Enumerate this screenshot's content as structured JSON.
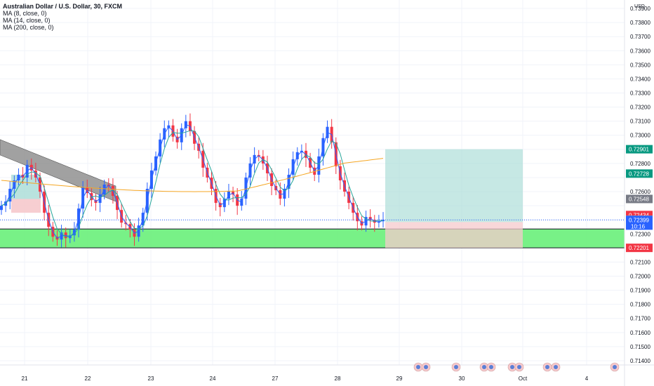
{
  "legend": {
    "title": "Australian Dollar / U.S. Dollar, 30, FXCM",
    "ma1": "MA (8, close, 0)",
    "ma2": "MA (14, close, 0)",
    "ma3": "MA (200, close, 0)"
  },
  "price_axis": {
    "currency": "USD",
    "ticks": [
      "0.73900",
      "0.73800",
      "0.73700",
      "0.73600",
      "0.73500",
      "0.73400",
      "0.73300",
      "0.73200",
      "0.73100",
      "0.73000",
      "0.72800",
      "0.72600",
      "0.72300",
      "0.72100",
      "0.72000",
      "0.71900",
      "0.71800",
      "0.71700",
      "0.71600",
      "0.71500",
      "0.71400"
    ],
    "top_partial_tick": "0.73900",
    "badges": [
      {
        "label": "0.72901",
        "value": 0.72901,
        "color": "#089981"
      },
      {
        "label": "0.72728",
        "value": 0.72728,
        "color": "#089981"
      },
      {
        "label": "0.72548",
        "value": 0.72548,
        "color": "#787b86"
      },
      {
        "label": "0.72434",
        "value": 0.72434,
        "color": "#f23645"
      },
      {
        "label": "0.72401",
        "value": 0.72401,
        "color": "#9e9e9e"
      },
      {
        "label": "0.72399",
        "value": 0.72399,
        "color": "#2962ff",
        "sub": "10:16"
      },
      {
        "label": "0.72201",
        "value": 0.72201,
        "color": "#f23645"
      }
    ]
  },
  "time_axis": {
    "labels": [
      "21",
      "22",
      "23",
      "24",
      "27",
      "28",
      "29",
      "30",
      "Oct",
      "4"
    ]
  },
  "colors": {
    "up": "#2962ff",
    "down": "#f23645",
    "ma8": "#2962ff",
    "ma14": "#26a69a",
    "ma200": "#f5a623",
    "zone": "#69f07a",
    "target": "#a8dcd6",
    "stop": "#f6c9cc"
  },
  "chart_data": {
    "type": "candlestick",
    "symbol": "Australian Dollar / U.S. Dollar",
    "timeframe": "30",
    "source": "FXCM",
    "x_labels": [
      "21",
      "22",
      "23",
      "24",
      "27",
      "28",
      "29",
      "30",
      "Oct",
      "4"
    ],
    "ylim": [
      0.7137,
      0.7396
    ],
    "support_zone": [
      0.72201,
      0.72335
    ],
    "long_position": {
      "entry": 0.72384,
      "target": 0.72901,
      "stop": 0.72201
    },
    "last_price": 0.72399,
    "price_path": [
      0.725,
      0.7253,
      0.7262,
      0.7268,
      0.7272,
      0.727,
      0.7279,
      0.7275,
      0.727,
      0.726,
      0.7245,
      0.7235,
      0.7228,
      0.7226,
      0.7231,
      0.7227,
      0.7229,
      0.7233,
      0.7248,
      0.7263,
      0.7259,
      0.7254,
      0.7252,
      0.7258,
      0.7265,
      0.7264,
      0.7257,
      0.7247,
      0.7238,
      0.7237,
      0.7233,
      0.7228,
      0.7236,
      0.7245,
      0.7262,
      0.7275,
      0.7285,
      0.7297,
      0.7305,
      0.7307,
      0.7299,
      0.7295,
      0.7305,
      0.731,
      0.7303,
      0.7294,
      0.7289,
      0.7277,
      0.727,
      0.7262,
      0.7252,
      0.7249,
      0.7255,
      0.726,
      0.7258,
      0.725,
      0.7255,
      0.727,
      0.728,
      0.7286,
      0.7285,
      0.728,
      0.7273,
      0.7264,
      0.7261,
      0.7255,
      0.7262,
      0.7272,
      0.7283,
      0.7288,
      0.7289,
      0.7284,
      0.7277,
      0.7272,
      0.7285,
      0.7298,
      0.7306,
      0.7295,
      0.7278,
      0.7268,
      0.726,
      0.7252,
      0.7245,
      0.7239,
      0.7236,
      0.7242,
      0.724,
      0.7238,
      0.7239,
      0.724
    ]
  }
}
